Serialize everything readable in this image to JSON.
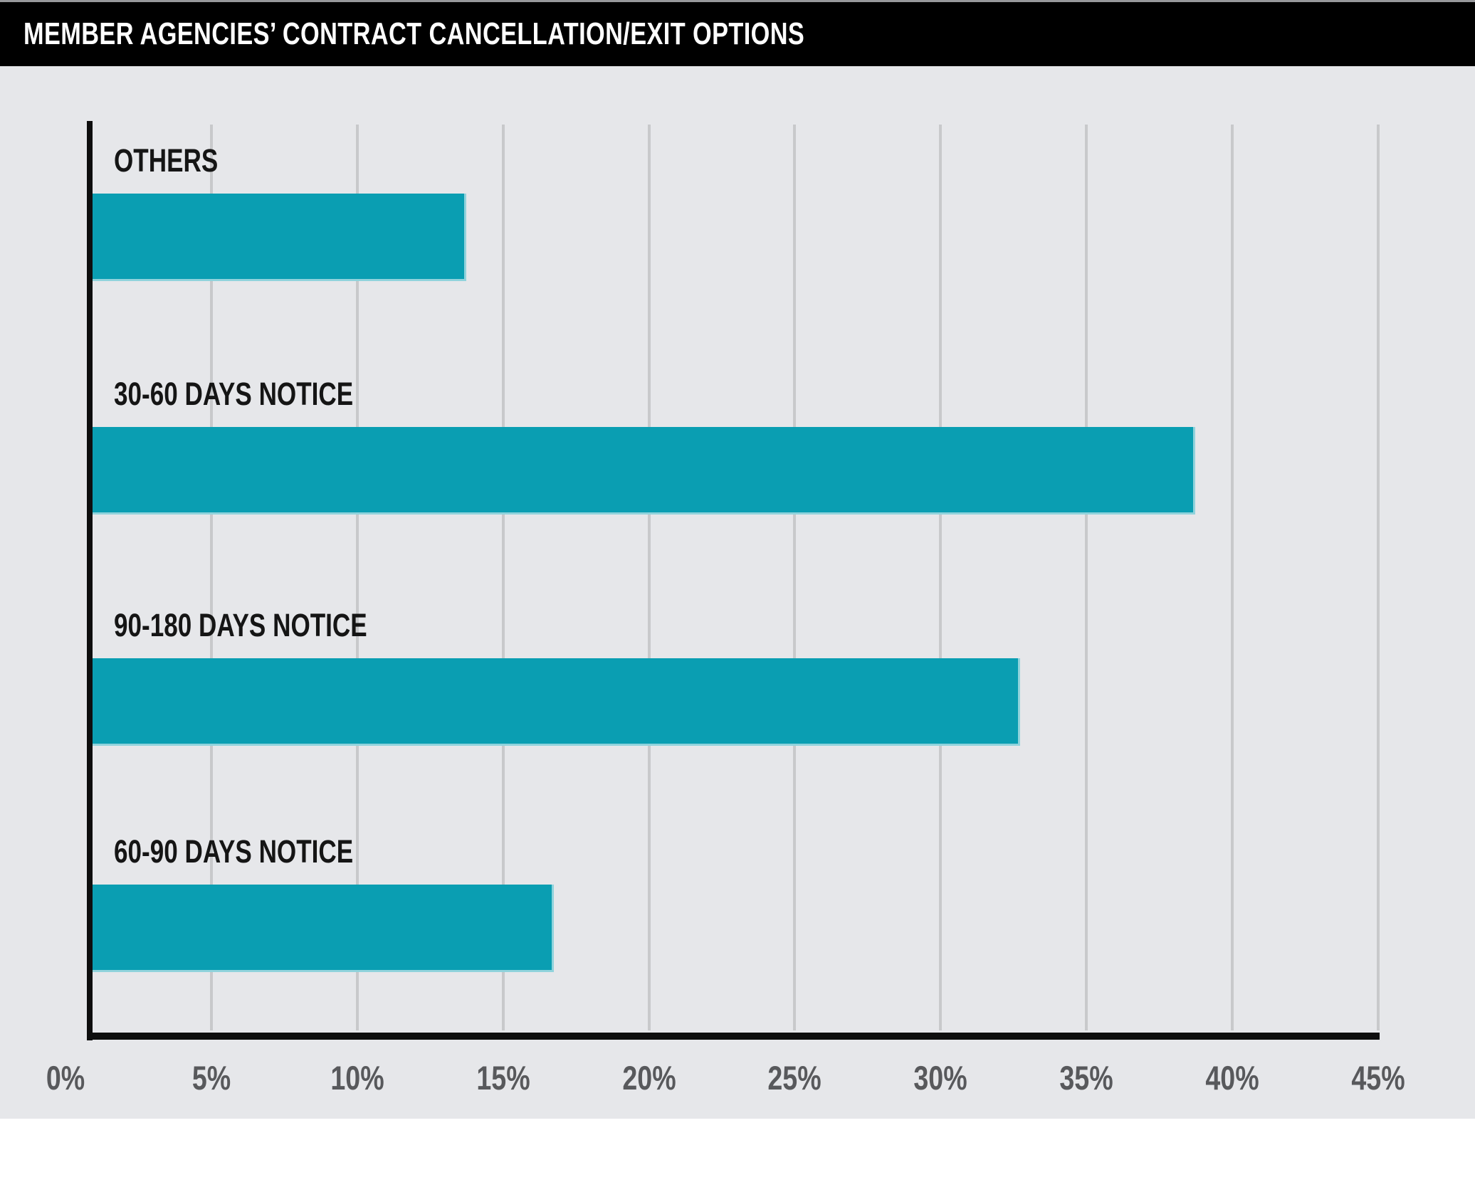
{
  "header": {
    "title": "MEMBER AGENCIES’ CONTRACT CANCELLATION/EXIT OPTIONS"
  },
  "chart_data": {
    "type": "bar",
    "orientation": "horizontal",
    "title": "MEMBER AGENCIES’ CONTRACT CANCELLATION/EXIT OPTIONS",
    "categories": [
      "OTHERS",
      "30-60 DAYS NOTICE",
      "90-180 DAYS NOTICE",
      "60-90 DAYS NOTICE"
    ],
    "values": [
      13,
      38,
      32,
      16
    ],
    "unit": "%",
    "xlabel": "",
    "ylabel": "",
    "xlim": [
      0,
      45
    ],
    "x_tick_step": 5,
    "x_tick_labels": [
      "0%",
      "5%",
      "10%",
      "15%",
      "20%",
      "25%",
      "30%",
      "35%",
      "40%",
      "45%"
    ],
    "grid": "vertical-only",
    "legend": "none",
    "colors": {
      "bar": "#0A9EB2",
      "plot_background": "#E6E7EA",
      "gridline": "#C8C9CB",
      "axis": "#0E0E0E",
      "tick_text": "#58595C",
      "category_text": "#151515",
      "title_bg": "#000000",
      "title_text": "#FFFFFF"
    }
  }
}
